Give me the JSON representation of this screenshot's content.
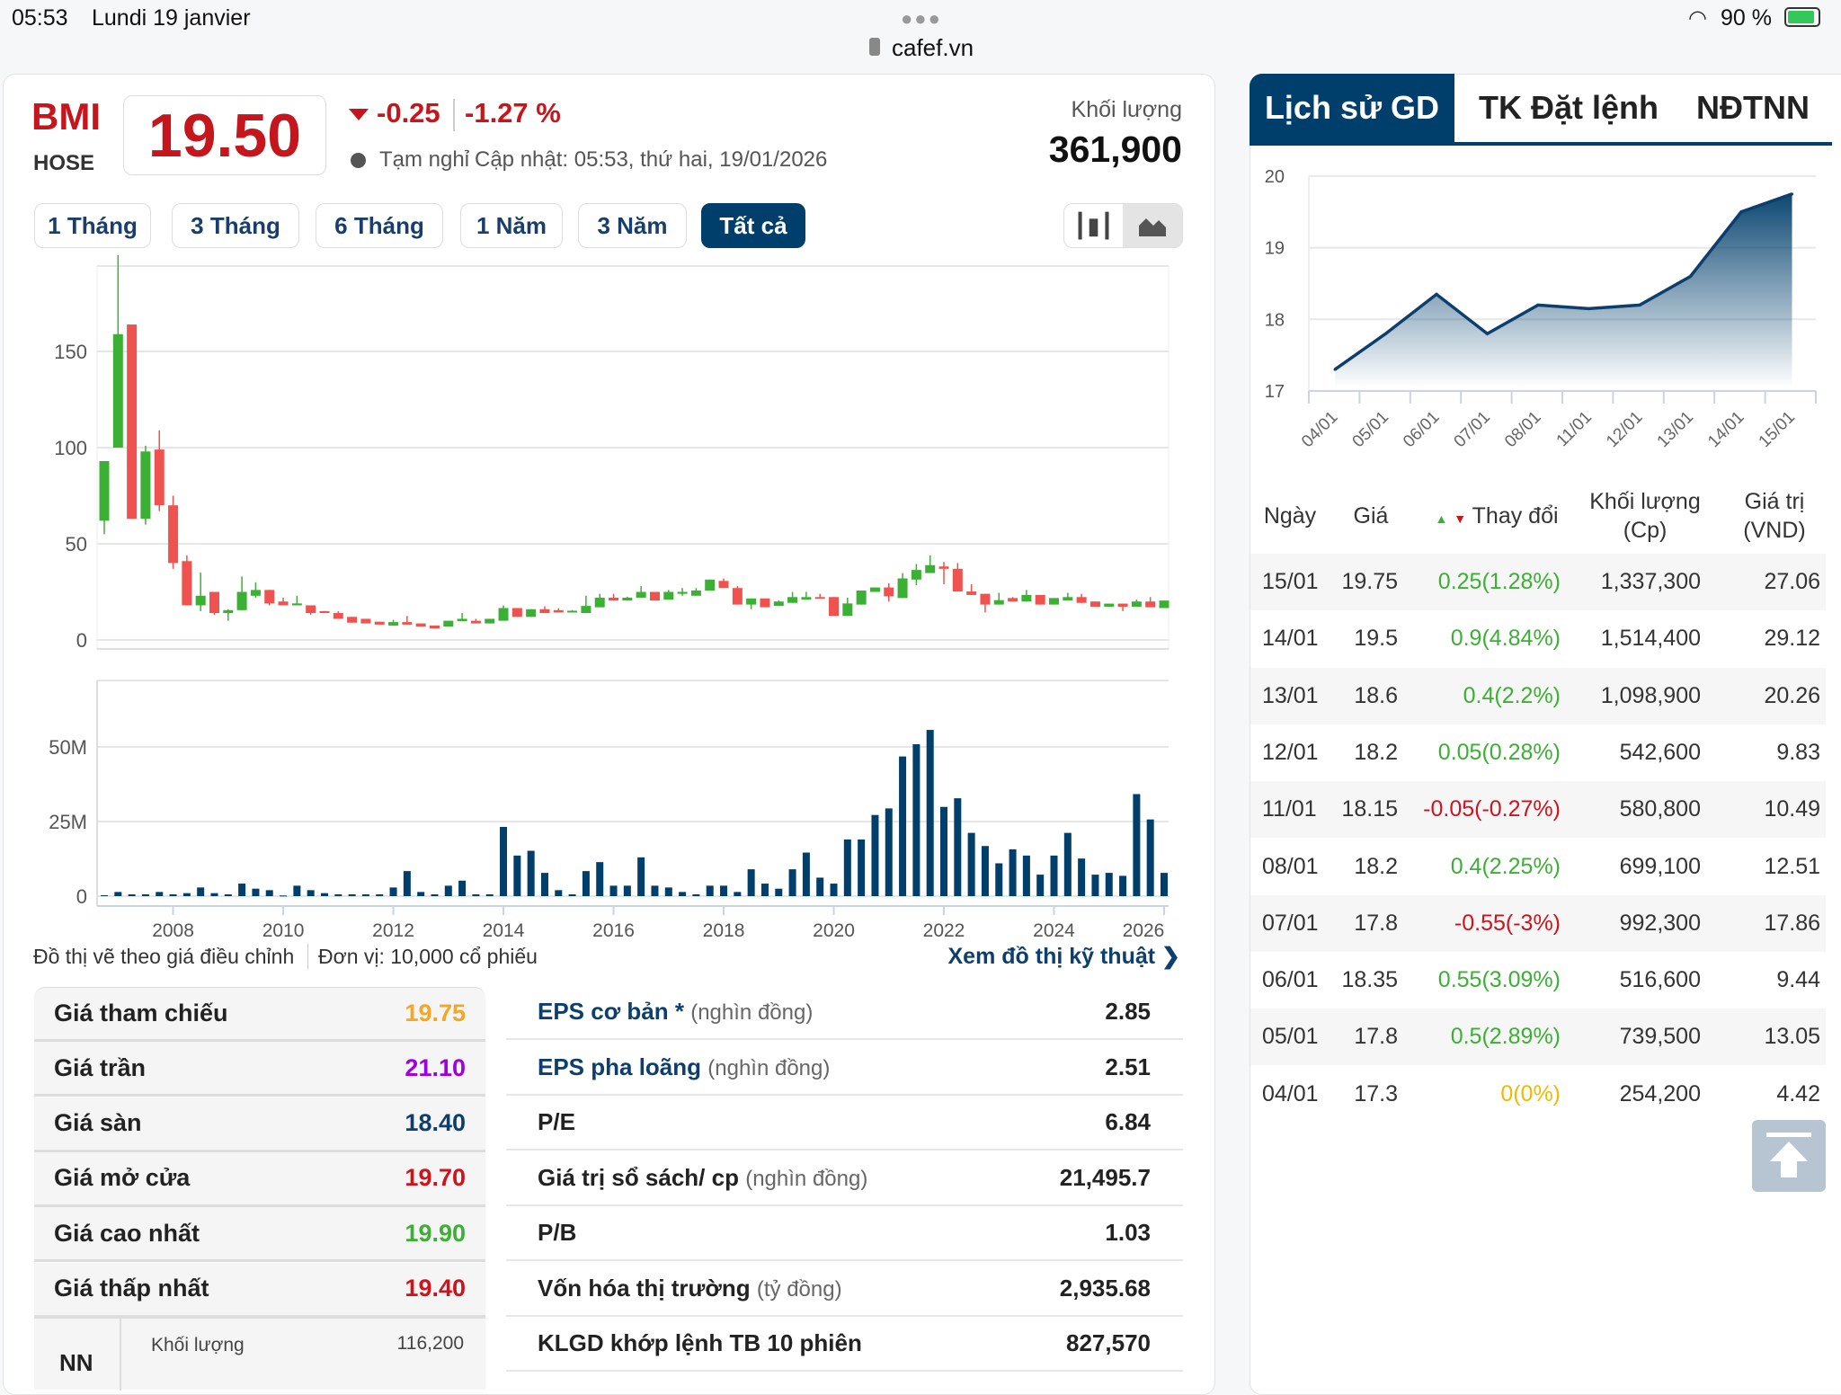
{
  "status_bar": {
    "time": "05:53",
    "date": "Lundi 19 janvier",
    "url": "cafef.vn",
    "battery": "90 %"
  },
  "stock": {
    "ticker": "BMI",
    "exchange": "HOSE",
    "price": "19.50",
    "change": "-0.25",
    "change_pct": "-1.27 %",
    "status": "Tạm nghỉ",
    "updated": "Cập nhật: 05:53, thứ hai, 19/01/2026",
    "volume_label": "Khối lượng",
    "volume": "361,900"
  },
  "periods": [
    "1 Tháng",
    "3 Tháng",
    "6 Tháng",
    "1 Năm",
    "3 Năm",
    "Tất cả"
  ],
  "active_period": "Tất cả",
  "colors": {
    "up": "#3cb034",
    "down": "#ef5350",
    "brand": "#003e6b",
    "ref": "#f5a623",
    "ceil": "#a000e0",
    "floor": "#0d3f6e"
  },
  "main_chart": {
    "price_ticks": [
      "150",
      "100",
      "50",
      "0"
    ],
    "volume_ticks": [
      "50M",
      "25M",
      "0"
    ],
    "years": [
      "2008",
      "2010",
      "2012",
      "2014",
      "2016",
      "2018",
      "2020",
      "2022",
      "2024",
      "2026"
    ],
    "candles": [
      [
        62,
        93,
        55,
        93
      ],
      [
        100,
        200,
        100,
        159
      ],
      [
        164,
        164,
        63,
        63
      ],
      [
        63,
        101,
        60,
        98
      ],
      [
        99,
        109,
        67,
        70
      ],
      [
        70,
        75,
        37,
        40
      ],
      [
        41,
        44,
        18,
        18
      ],
      [
        18,
        35,
        15,
        23
      ],
      [
        25,
        25,
        13,
        14
      ],
      [
        14,
        16,
        10,
        15.5
      ],
      [
        15.5,
        33,
        15.5,
        25
      ],
      [
        23,
        30,
        22,
        26
      ],
      [
        26,
        26,
        18,
        19
      ],
      [
        20,
        22,
        18,
        18
      ],
      [
        18,
        23,
        18,
        19
      ],
      [
        18,
        18,
        13,
        14
      ],
      [
        15,
        15,
        14,
        14
      ],
      [
        14,
        15,
        11,
        11
      ],
      [
        12,
        12,
        9,
        9
      ],
      [
        11,
        11,
        8.6,
        8.6
      ],
      [
        9.5,
        9.5,
        8,
        8
      ],
      [
        7.5,
        10.5,
        7.5,
        9.3
      ],
      [
        9.3,
        12.5,
        8,
        8
      ],
      [
        8.6,
        8.6,
        7,
        7
      ],
      [
        7.5,
        7.5,
        6,
        6
      ],
      [
        7,
        10,
        7,
        10
      ],
      [
        9.8,
        14,
        9.8,
        11
      ],
      [
        10,
        11,
        8.6,
        8.6
      ],
      [
        8.6,
        11,
        8.6,
        11
      ],
      [
        10,
        18,
        10,
        16.6
      ],
      [
        16.6,
        16.6,
        12,
        12
      ],
      [
        12,
        16,
        12,
        16
      ],
      [
        16,
        17.5,
        14,
        14
      ],
      [
        15.5,
        16.5,
        14.3,
        14.3
      ],
      [
        14.8,
        15.5,
        14.5,
        15.2
      ],
      [
        14,
        23,
        14,
        17.7
      ],
      [
        17,
        24,
        17,
        22
      ],
      [
        22,
        24,
        20.5,
        20.5
      ],
      [
        20.5,
        22.5,
        20.5,
        22
      ],
      [
        22,
        28,
        22,
        25
      ],
      [
        25,
        25,
        20.5,
        20.5
      ],
      [
        21,
        26,
        21,
        25
      ],
      [
        24,
        27,
        23,
        25
      ],
      [
        23,
        27,
        23,
        25.7
      ],
      [
        25.7,
        31.4,
        25.7,
        31.4
      ],
      [
        30.7,
        32,
        27,
        27
      ],
      [
        27,
        28,
        18.4,
        18.4
      ],
      [
        18.4,
        21.6,
        16,
        21.6
      ],
      [
        21.6,
        21.6,
        17,
        17
      ],
      [
        17.7,
        20.5,
        17.7,
        20
      ],
      [
        19.3,
        25,
        19.3,
        22.3
      ],
      [
        21,
        25,
        21,
        22.3
      ],
      [
        22.3,
        24,
        21.6,
        21.6
      ],
      [
        22.3,
        22.3,
        12.5,
        12.5
      ],
      [
        12.5,
        22,
        12.5,
        19
      ],
      [
        18.4,
        25.7,
        18.4,
        25.7
      ],
      [
        25,
        27.3,
        25,
        27.3
      ],
      [
        27.3,
        29.5,
        20,
        22.7
      ],
      [
        21.8,
        34.8,
        21.8,
        32
      ],
      [
        31.4,
        39.5,
        28.5,
        36.4
      ],
      [
        34.8,
        43.9,
        34.8,
        38.9
      ],
      [
        38.2,
        40.5,
        29,
        37
      ],
      [
        37,
        40,
        25.2,
        25.2
      ],
      [
        25.2,
        29,
        23.4,
        23.4
      ],
      [
        24,
        24,
        14.3,
        18.4
      ],
      [
        18.4,
        24.5,
        18.4,
        20.7
      ],
      [
        21.8,
        22.3,
        20,
        20
      ],
      [
        20,
        26,
        20,
        23.4
      ],
      [
        23.4,
        23.4,
        18.4,
        18.4
      ],
      [
        18.4,
        21.8,
        18.4,
        21.8
      ],
      [
        20.5,
        24.5,
        20.5,
        22.3
      ],
      [
        22.3,
        24,
        19.3,
        19.3
      ],
      [
        20,
        20,
        17.3,
        17.3
      ],
      [
        17.3,
        18.9,
        17.3,
        18.9
      ],
      [
        18.9,
        18.9,
        15,
        17.3
      ],
      [
        17.3,
        21,
        17.3,
        20
      ],
      [
        20,
        22.3,
        17,
        17
      ],
      [
        16.6,
        20.5,
        16.6,
        20.5
      ]
    ],
    "volumes_m": [
      0.3,
      1.4,
      0.6,
      0.6,
      1.4,
      0.6,
      1,
      2.9,
      1,
      0.6,
      4.2,
      2.5,
      2,
      0.2,
      3.5,
      2,
      1,
      0.6,
      0.6,
      0.6,
      0.6,
      2.9,
      8.4,
      1.4,
      0.6,
      3.5,
      5.2,
      0.6,
      0.6,
      23.2,
      13.6,
      15.2,
      7.8,
      2,
      0.6,
      8.4,
      11.4,
      3.5,
      3.5,
      13,
      3.5,
      2.9,
      1.4,
      0.6,
      3.5,
      3.5,
      1.4,
      9,
      4.2,
      2.5,
      9,
      14.6,
      6.2,
      4.2,
      19,
      19,
      27.2,
      29.4,
      46.8,
      50.9,
      55.7,
      29.9,
      32.8,
      21.2,
      16.8,
      11,
      15.7,
      13.6,
      7.2,
      13.6,
      21.2,
      12.6,
      7.2,
      7.8,
      6.8,
      34.2,
      25.7,
      7.8
    ],
    "note_adjusted": "Đồ thị vẽ theo giá điều chỉnh",
    "note_unit": "Đơn vị: 10,000 cổ phiếu",
    "tech_link": "Xem đồ thị kỹ thuật"
  },
  "price_table": [
    {
      "label": "Giá tham chiếu",
      "value": "19.75",
      "color": "#f5a623"
    },
    {
      "label": "Giá trần",
      "value": "21.10",
      "color": "#a000e0"
    },
    {
      "label": "Giá sàn",
      "value": "18.40",
      "color": "#0d3f6e"
    },
    {
      "label": "Giá mở cửa",
      "value": "19.70",
      "color": "#d0121b"
    },
    {
      "label": "Giá cao nhất",
      "value": "19.90",
      "color": "#3cb034"
    },
    {
      "label": "Giá thấp nhất",
      "value": "19.40",
      "color": "#d0121b"
    }
  ],
  "nn": {
    "label": "NN",
    "sub_label": "Khối lượng",
    "value": "116,200"
  },
  "fundamentals": [
    {
      "label": "EPS cơ bản *",
      "unit": "(nghìn đồng)",
      "value": "2.85",
      "blue": true
    },
    {
      "label": "EPS pha loãng",
      "unit": "(nghìn đồng)",
      "value": "2.51",
      "blue": true
    },
    {
      "label": "P/E",
      "unit": "",
      "value": "6.84",
      "blue": false
    },
    {
      "label": "Giá trị sổ sách/ cp",
      "unit": "(nghìn đồng)",
      "value": "21,495.7",
      "blue": false
    },
    {
      "label": "P/B",
      "unit": "",
      "value": "1.03",
      "blue": false
    },
    {
      "label": "Vốn hóa thị trường",
      "unit": "(tỷ đồng)",
      "value": "2,935.68",
      "blue": false
    },
    {
      "label": "KLGD khớp lệnh TB 10 phiên",
      "unit": "",
      "value": "827,570",
      "blue": false
    }
  ],
  "right_tabs": [
    "Lịch sử GD",
    "TK Đặt lệnh",
    "NĐTNN"
  ],
  "chart_data": {
    "type": "area",
    "title": "",
    "x": [
      "04/01",
      "05/01",
      "06/01",
      "07/01",
      "08/01",
      "11/01",
      "12/01",
      "13/01",
      "14/01",
      "15/01"
    ],
    "values": [
      17.3,
      17.8,
      18.35,
      17.8,
      18.2,
      18.15,
      18.2,
      18.6,
      19.5,
      19.75
    ],
    "yticks": [
      "20",
      "19",
      "18",
      "17"
    ],
    "ylim": [
      17,
      20
    ],
    "grid": true
  },
  "history": {
    "headers": {
      "date": "Ngày",
      "price": "Giá",
      "change": "Thay đổi",
      "volume": "Khối lượng",
      "volume_unit": "(Cp)",
      "value": "Giá trị",
      "value_unit": "(VND)"
    },
    "rows": [
      {
        "date": "15/01",
        "price": "19.75",
        "change": "0.25(1.28%)",
        "dir": "up",
        "volume": "1,337,300",
        "value": "27.06"
      },
      {
        "date": "14/01",
        "price": "19.5",
        "change": "0.9(4.84%)",
        "dir": "up",
        "volume": "1,514,400",
        "value": "29.12"
      },
      {
        "date": "13/01",
        "price": "18.6",
        "change": "0.4(2.2%)",
        "dir": "up",
        "volume": "1,098,900",
        "value": "20.26"
      },
      {
        "date": "12/01",
        "price": "18.2",
        "change": "0.05(0.28%)",
        "dir": "up",
        "volume": "542,600",
        "value": "9.83"
      },
      {
        "date": "11/01",
        "price": "18.15",
        "change": "-0.05(-0.27%)",
        "dir": "down",
        "volume": "580,800",
        "value": "10.49"
      },
      {
        "date": "08/01",
        "price": "18.2",
        "change": "0.4(2.25%)",
        "dir": "up",
        "volume": "699,100",
        "value": "12.51"
      },
      {
        "date": "07/01",
        "price": "17.8",
        "change": "-0.55(-3%)",
        "dir": "down",
        "volume": "992,300",
        "value": "17.86"
      },
      {
        "date": "06/01",
        "price": "18.35",
        "change": "0.55(3.09%)",
        "dir": "up",
        "volume": "516,600",
        "value": "9.44"
      },
      {
        "date": "05/01",
        "price": "17.8",
        "change": "0.5(2.89%)",
        "dir": "up",
        "volume": "739,500",
        "value": "13.05"
      },
      {
        "date": "04/01",
        "price": "17.3",
        "change": "0(0%)",
        "dir": "flat",
        "volume": "254,200",
        "value": "4.42"
      }
    ]
  }
}
